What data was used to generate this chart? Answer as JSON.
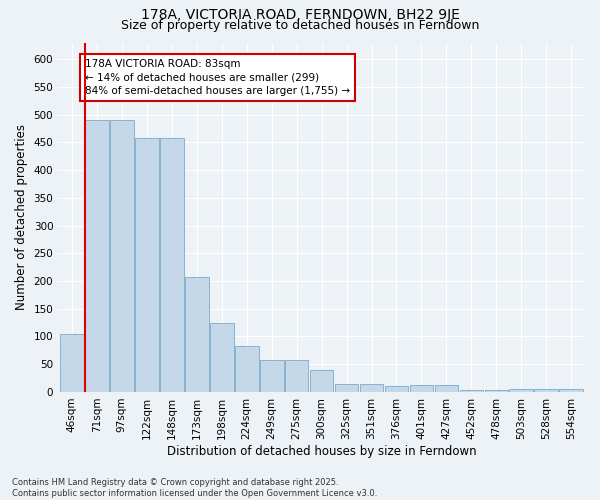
{
  "title": "178A, VICTORIA ROAD, FERNDOWN, BH22 9JE",
  "subtitle": "Size of property relative to detached houses in Ferndown",
  "xlabel": "Distribution of detached houses by size in Ferndown",
  "ylabel": "Number of detached properties",
  "bar_labels": [
    "46sqm",
    "71sqm",
    "97sqm",
    "122sqm",
    "148sqm",
    "173sqm",
    "198sqm",
    "224sqm",
    "249sqm",
    "275sqm",
    "300sqm",
    "325sqm",
    "351sqm",
    "376sqm",
    "401sqm",
    "427sqm",
    "452sqm",
    "478sqm",
    "503sqm",
    "528sqm",
    "554sqm"
  ],
  "bar_values": [
    105,
    490,
    490,
    458,
    458,
    208,
    125,
    83,
    57,
    57,
    40,
    15,
    15,
    10,
    12,
    12,
    4,
    4,
    6,
    6,
    6
  ],
  "bar_color": "#c5d8ea",
  "bar_edge_color": "#7aaac8",
  "red_line_color": "#dd0000",
  "annotation_text": "178A VICTORIA ROAD: 83sqm\n← 14% of detached houses are smaller (299)\n84% of semi-detached houses are larger (1,755) →",
  "annotation_box_color": "#ffffff",
  "annotation_box_edge": "#cc0000",
  "ylim": [
    0,
    630
  ],
  "yticks": [
    0,
    50,
    100,
    150,
    200,
    250,
    300,
    350,
    400,
    450,
    500,
    550,
    600
  ],
  "footer_line1": "Contains HM Land Registry data © Crown copyright and database right 2025.",
  "footer_line2": "Contains public sector information licensed under the Open Government Licence v3.0.",
  "bg_color": "#edf2f7",
  "grid_color": "#ffffff",
  "title_fontsize": 10,
  "subtitle_fontsize": 9,
  "axis_label_fontsize": 8.5,
  "tick_fontsize": 7.5,
  "footer_fontsize": 6,
  "annotation_fontsize": 7.5
}
